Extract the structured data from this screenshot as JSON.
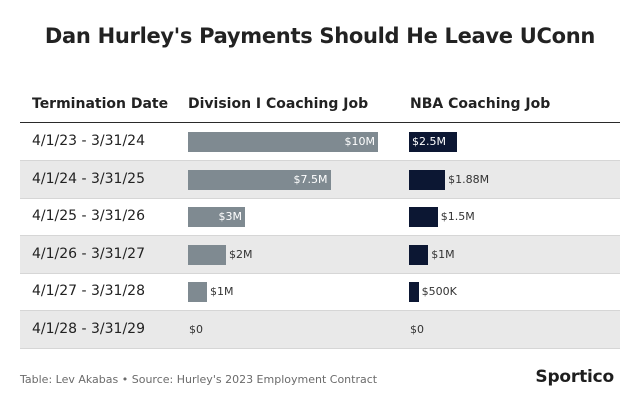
{
  "title": "Dan Hurley's Payments Should He Leave UConn",
  "chart_data": {
    "type": "table",
    "columns": [
      "Termination Date",
      "Division I Coaching Job",
      "NBA Coaching Job"
    ],
    "rows": [
      {
        "period": "4/1/23 - 3/31/24",
        "division_i": 10,
        "division_i_label": "$10M",
        "nba": 2.5,
        "nba_label": "$2.5M"
      },
      {
        "period": "4/1/24 - 3/31/25",
        "division_i": 7.5,
        "division_i_label": "$7.5M",
        "nba": 1.88,
        "nba_label": "$1.88M"
      },
      {
        "period": "4/1/25 - 3/31/26",
        "division_i": 3,
        "division_i_label": "$3M",
        "nba": 1.5,
        "nba_label": "$1.5M"
      },
      {
        "period": "4/1/26 - 3/31/27",
        "division_i": 2,
        "division_i_label": "$2M",
        "nba": 1,
        "nba_label": "$1M"
      },
      {
        "period": "4/1/27 - 3/31/28",
        "division_i": 1,
        "division_i_label": "$1M",
        "nba": 0.5,
        "nba_label": "$500K"
      },
      {
        "period": "4/1/28 - 3/31/29",
        "division_i": 0,
        "division_i_label": "$0",
        "nba": 0,
        "nba_label": "$0"
      }
    ],
    "units": "millions of dollars",
    "colors": {
      "division_i": "#7f8a91",
      "nba": "#0c1733",
      "alt_row": "#e9e9e9"
    }
  },
  "footer": {
    "credit": "Table: Lev Akabas • Source: Hurley's 2023 Employment Contract",
    "logo": "Sportico"
  }
}
